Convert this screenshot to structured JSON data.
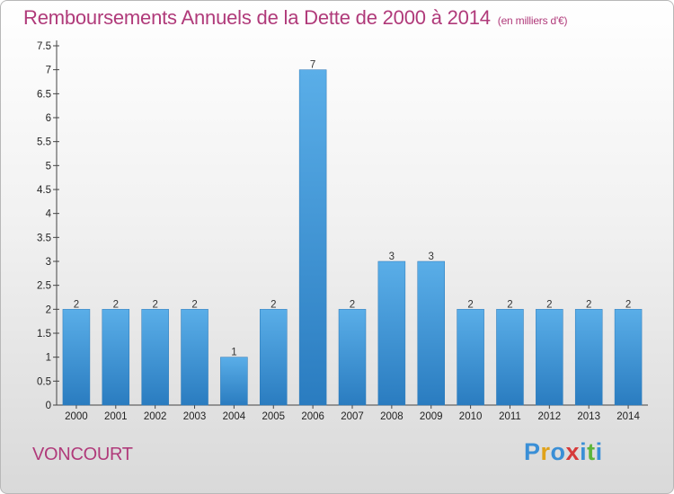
{
  "page": {
    "title": "Remboursements Annuels de la Dette de 2000 à 2014",
    "subtitle": "(en milliers d'€)",
    "location": "VONCOURT",
    "logo": {
      "letters": [
        {
          "char": "P",
          "color": "#3a8fd6"
        },
        {
          "char": "r",
          "color": "#e0a21a"
        },
        {
          "char": "o",
          "color": "#3a8fd6"
        },
        {
          "char": "x",
          "color": "#d63a3a"
        },
        {
          "char": "i",
          "color": "#3a8fd6"
        },
        {
          "char": "t",
          "color": "#5cb53a"
        },
        {
          "char": "i",
          "color": "#3a8fd6"
        }
      ]
    }
  },
  "chart_data": {
    "type": "bar",
    "title": "Remboursements Annuels de la Dette de 2000 à 2014",
    "subtitle": "(en milliers d'€)",
    "xlabel": "",
    "ylabel": "",
    "categories": [
      "2000",
      "2001",
      "2002",
      "2003",
      "2004",
      "2005",
      "2006",
      "2007",
      "2008",
      "2009",
      "2010",
      "2011",
      "2012",
      "2013",
      "2014"
    ],
    "values": [
      2,
      2,
      2,
      2,
      1,
      2,
      7,
      2,
      3,
      3,
      2,
      2,
      2,
      2,
      2
    ],
    "data_labels": [
      "2",
      "2",
      "2",
      "2",
      "1",
      "2",
      "7",
      "2",
      "3",
      "3",
      "2",
      "2",
      "2",
      "2",
      "2"
    ],
    "ylim": [
      0,
      7.5
    ],
    "yticks": [
      0,
      0.5,
      1,
      1.5,
      2,
      2.5,
      3,
      3.5,
      4,
      4.5,
      5,
      5.5,
      6,
      6.5,
      7,
      7.5
    ],
    "ytick_labels": [
      "0",
      "0.5",
      "1",
      "1.5",
      "2",
      "2.5",
      "3",
      "3.5",
      "4",
      "4.5",
      "5",
      "5.5",
      "6",
      "6.5",
      "7",
      "7.5"
    ],
    "grid": false,
    "legend": "none",
    "bar_color": "#3a92d8"
  }
}
